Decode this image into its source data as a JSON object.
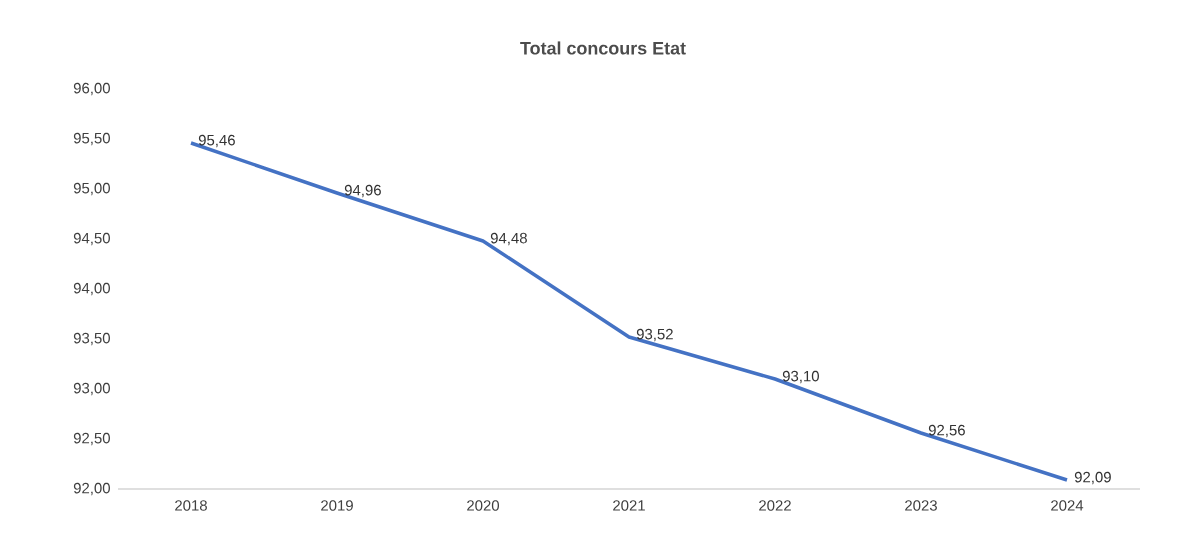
{
  "chart_data": {
    "type": "line",
    "title": "Total concours Etat",
    "categories": [
      "2018",
      "2019",
      "2020",
      "2021",
      "2022",
      "2023",
      "2024"
    ],
    "values": [
      95.46,
      94.96,
      94.48,
      93.52,
      93.1,
      92.56,
      92.09
    ],
    "value_labels": [
      "95,46",
      "94,96",
      "94,48",
      "93,52",
      "93,10",
      "92,56",
      "92,09"
    ],
    "color": "#4472c4",
    "ylim": [
      92,
      96
    ],
    "yticks": [
      {
        "value": 92,
        "label": "92,00"
      },
      {
        "value": 92.5,
        "label": "92,50"
      },
      {
        "value": 93,
        "label": "93,00"
      },
      {
        "value": 93.5,
        "label": "93,50"
      },
      {
        "value": 94,
        "label": "94,00"
      },
      {
        "value": 94.5,
        "label": "94,50"
      },
      {
        "value": 95,
        "label": "95,00"
      },
      {
        "value": 95.5,
        "label": "95,50"
      },
      {
        "value": 96,
        "label": "96,00"
      }
    ]
  }
}
